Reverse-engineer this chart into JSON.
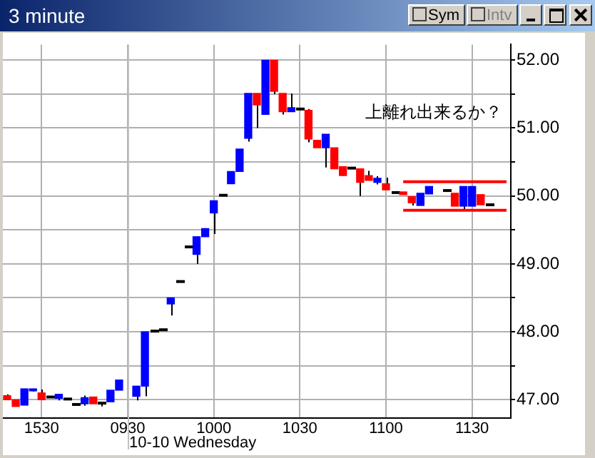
{
  "chart_data": {
    "type": "candlestick",
    "title": "3 minute",
    "categories": [
      null,
      null,
      null,
      null,
      "1530",
      null,
      null,
      null,
      null,
      null,
      null,
      null,
      null,
      null,
      "0930",
      null,
      null,
      null,
      null,
      null,
      null,
      null,
      null,
      null,
      "1000",
      null,
      null,
      null,
      null,
      null,
      null,
      null,
      null,
      null,
      "1030",
      null,
      null,
      null,
      null,
      null,
      null,
      null,
      null,
      null,
      "1100",
      null,
      null,
      null,
      null,
      null,
      null,
      null,
      null,
      null,
      "1130",
      null,
      null,
      null,
      null
    ],
    "ohlc": [
      [
        47.06,
        47.08,
        47.0,
        47.0
      ],
      [
        47.0,
        47.0,
        46.9,
        46.9
      ],
      [
        46.92,
        47.16,
        46.92,
        47.16
      ],
      [
        47.13,
        47.16,
        47.12,
        47.16
      ],
      [
        47.1,
        47.15,
        47.0,
        47.0
      ],
      [
        47.04,
        47.04,
        47.04,
        47.04
      ],
      [
        47.02,
        47.08,
        46.99,
        47.08
      ],
      [
        47.01,
        47.01,
        47.01,
        47.01
      ],
      [
        46.93,
        46.93,
        46.93,
        46.93
      ],
      [
        46.94,
        47.06,
        46.91,
        47.03
      ],
      [
        47.04,
        47.04,
        46.94,
        46.94
      ],
      [
        46.95,
        46.95,
        46.9,
        46.95
      ],
      [
        46.97,
        47.14,
        46.97,
        47.14
      ],
      [
        47.14,
        47.29,
        47.14,
        47.29
      ],
      null,
      [
        47.05,
        47.2,
        46.99,
        47.2
      ],
      [
        47.2,
        48.0,
        47.05,
        48.0
      ],
      [
        48.01,
        48.01,
        48.01,
        48.01
      ],
      [
        48.03,
        48.03,
        48.03,
        48.03
      ],
      [
        48.41,
        48.5,
        48.24,
        48.5
      ],
      [
        48.74,
        48.74,
        48.74,
        48.74
      ],
      [
        49.25,
        49.25,
        49.25,
        49.25
      ],
      [
        49.14,
        49.4,
        49.0,
        49.4
      ],
      [
        49.4,
        49.52,
        49.4,
        49.52
      ],
      [
        49.75,
        49.93,
        49.44,
        49.93
      ],
      [
        50.01,
        50.01,
        50.01,
        50.01
      ],
      [
        50.18,
        50.36,
        50.18,
        50.36
      ],
      [
        50.36,
        50.69,
        50.36,
        50.69
      ],
      [
        50.85,
        51.51,
        50.8,
        51.51
      ],
      [
        51.51,
        51.51,
        51.0,
        51.34
      ],
      [
        51.2,
        52.0,
        51.2,
        52.0
      ],
      [
        52.0,
        52.0,
        51.5,
        51.54
      ],
      [
        51.51,
        51.51,
        51.2,
        51.24
      ],
      [
        51.24,
        51.51,
        51.24,
        51.3
      ],
      [
        51.28,
        51.3,
        51.26,
        51.28
      ],
      [
        51.26,
        51.28,
        50.79,
        50.84
      ],
      [
        50.82,
        50.82,
        50.71,
        50.71
      ],
      [
        50.71,
        50.91,
        50.42,
        50.91
      ],
      [
        50.71,
        50.71,
        50.4,
        50.4
      ],
      [
        50.43,
        50.43,
        50.3,
        50.3
      ],
      [
        50.41,
        50.41,
        50.41,
        50.41
      ],
      [
        50.4,
        50.4,
        50.0,
        50.2
      ],
      [
        50.3,
        50.37,
        50.23,
        50.23
      ],
      [
        50.2,
        50.29,
        50.17,
        50.26
      ],
      [
        50.18,
        50.27,
        50.09,
        50.09
      ],
      [
        50.05,
        50.05,
        50.05,
        50.05
      ],
      [
        50.06,
        50.06,
        50.02,
        50.02
      ],
      [
        49.99,
        49.99,
        49.86,
        49.9
      ],
      [
        49.86,
        50.04,
        49.86,
        50.04
      ],
      [
        50.03,
        50.14,
        50.03,
        50.14
      ],
      null,
      [
        50.08,
        50.08,
        50.08,
        50.08
      ],
      [
        50.04,
        50.04,
        49.85,
        49.85
      ],
      [
        49.85,
        50.14,
        49.78,
        50.14
      ],
      [
        49.85,
        50.14,
        49.85,
        50.14
      ],
      [
        50.02,
        50.02,
        49.87,
        49.87
      ],
      [
        49.87,
        49.87,
        49.87,
        49.87
      ],
      null,
      null
    ],
    "colors": [
      "#ff0000",
      "#ff0000",
      "#0000ff",
      "#0000ff",
      "#ff0000",
      "#000000",
      "#0000ff",
      "#000000",
      "#000000",
      "#0000ff",
      "#ff0000",
      "#000000",
      "#0000ff",
      "#0000ff",
      null,
      "#0000ff",
      "#0000ff",
      "#000000",
      "#000000",
      "#0000ff",
      "#000000",
      "#000000",
      "#0000ff",
      "#0000ff",
      "#0000ff",
      "#000000",
      "#0000ff",
      "#0000ff",
      "#0000ff",
      "#ff0000",
      "#0000ff",
      "#ff0000",
      "#ff0000",
      "#0000ff",
      "#000000",
      "#ff0000",
      "#ff0000",
      "#0000ff",
      "#ff0000",
      "#ff0000",
      "#000000",
      "#ff0000",
      "#ff0000",
      "#0000ff",
      "#ff0000",
      "#000000",
      "#ff0000",
      "#ff0000",
      "#0000ff",
      "#0000ff",
      null,
      "#000000",
      "#ff0000",
      "#0000ff",
      "#0000ff",
      "#ff0000",
      "#000000",
      null,
      null
    ],
    "series": [
      {
        "type": "line",
        "color": "#ff0000",
        "values": [
          null,
          null,
          null,
          null,
          null,
          null,
          null,
          null,
          null,
          null,
          null,
          null,
          null,
          null,
          null,
          null,
          null,
          null,
          null,
          null,
          null,
          null,
          null,
          null,
          null,
          null,
          null,
          null,
          null,
          null,
          null,
          null,
          null,
          null,
          null,
          null,
          null,
          null,
          null,
          null,
          null,
          null,
          null,
          null,
          null,
          null,
          50.21,
          50.21,
          50.21,
          50.21,
          50.21,
          50.21,
          50.21,
          50.21,
          50.21,
          50.21,
          50.21,
          50.21,
          50.21
        ]
      },
      {
        "type": "line",
        "color": "#ff0000",
        "values": [
          null,
          null,
          null,
          null,
          null,
          null,
          null,
          null,
          null,
          null,
          null,
          null,
          null,
          null,
          null,
          null,
          null,
          null,
          null,
          null,
          null,
          null,
          null,
          null,
          null,
          null,
          null,
          null,
          null,
          null,
          null,
          null,
          null,
          null,
          null,
          null,
          null,
          null,
          null,
          null,
          null,
          null,
          null,
          null,
          null,
          null,
          49.79,
          49.79,
          49.79,
          49.79,
          49.79,
          49.79,
          49.79,
          49.79,
          49.79,
          49.79,
          49.79,
          49.79,
          49.79
        ]
      }
    ],
    "ylim": [
      46.73,
      52.23
    ],
    "yticks": [
      {
        "value": 47,
        "label": "47.00"
      },
      {
        "value": 47.5,
        "label": null
      },
      {
        "value": 48,
        "label": "48.00"
      },
      {
        "value": 48.5,
        "label": null
      },
      {
        "value": 49,
        "label": "49.00"
      },
      {
        "value": 49.5,
        "label": null
      },
      {
        "value": 50,
        "label": "50.00"
      },
      {
        "value": 50.5,
        "label": null
      },
      {
        "value": 51,
        "label": "51.00"
      },
      {
        "value": 51.5,
        "label": null
      },
      {
        "value": 52,
        "label": "52.00"
      }
    ],
    "ref_lines": [
      {
        "axis": "x",
        "value": "0930",
        "color": "#c0c0c0"
      }
    ],
    "annotations": [
      "上離れ出来るか？",
      "10-10 Wednesday",
      "Sym",
      "Intv"
    ],
    "grid": true,
    "legend": false
  }
}
